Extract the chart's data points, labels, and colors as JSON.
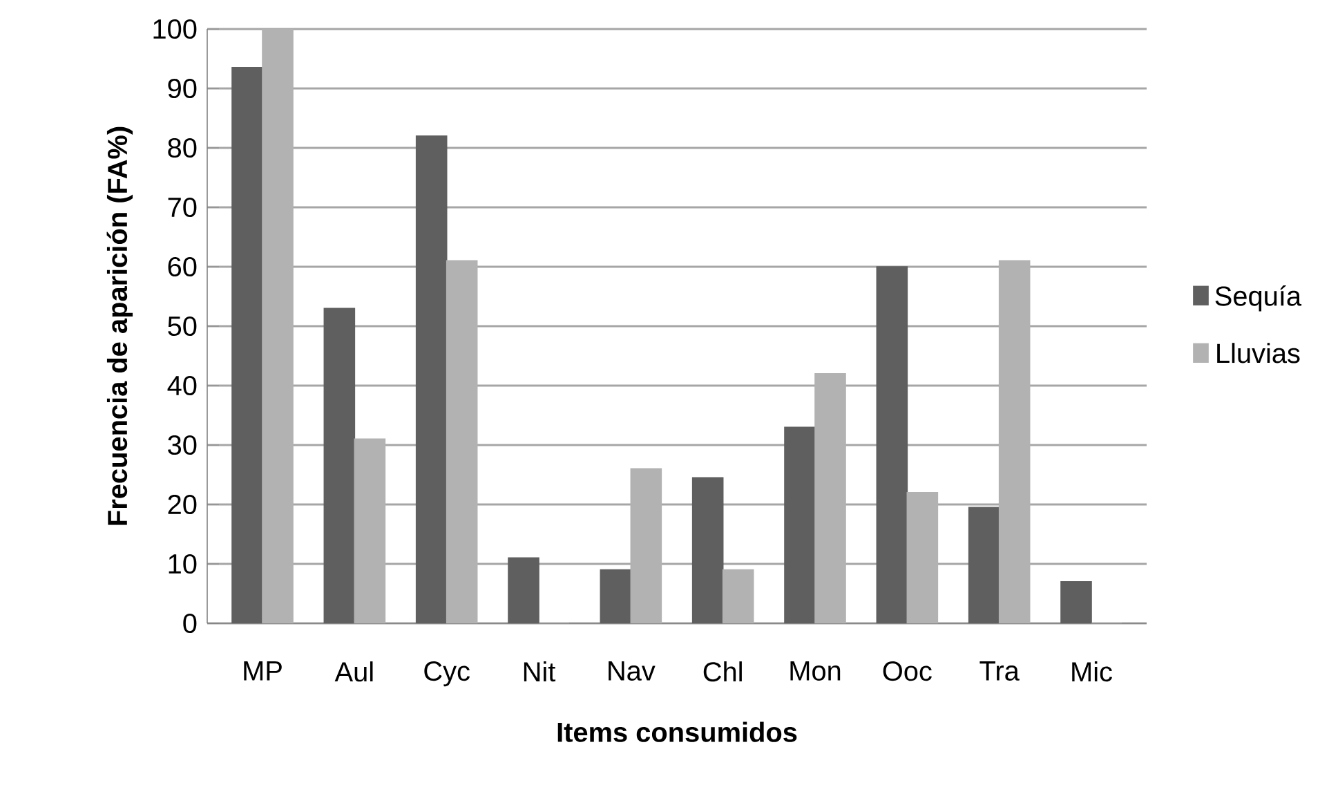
{
  "chart_data": {
    "type": "bar",
    "xlabel": "Items consumidos",
    "ylabel": "Frecuencia de aparición (FA%)",
    "categories": [
      "MP",
      "Aul",
      "Cyc",
      "Nit",
      "Nav",
      "Chl",
      "Mon",
      "Ooc",
      "Tra",
      "Mic"
    ],
    "series": [
      {
        "name": "Sequía",
        "color": "#5f5f5f",
        "values": [
          93.5,
          53,
          82,
          11,
          9,
          24.5,
          33,
          60,
          19.5,
          7
        ]
      },
      {
        "name": "Lluvias",
        "color": "#b2b2b2",
        "values": [
          100,
          31,
          61,
          0,
          26,
          9,
          42,
          22,
          61,
          0
        ]
      }
    ],
    "ylim": [
      0,
      100
    ],
    "yticks": [
      0,
      10,
      20,
      30,
      40,
      50,
      60,
      70,
      80,
      90,
      100
    ],
    "grid": "y",
    "legend": "right"
  }
}
